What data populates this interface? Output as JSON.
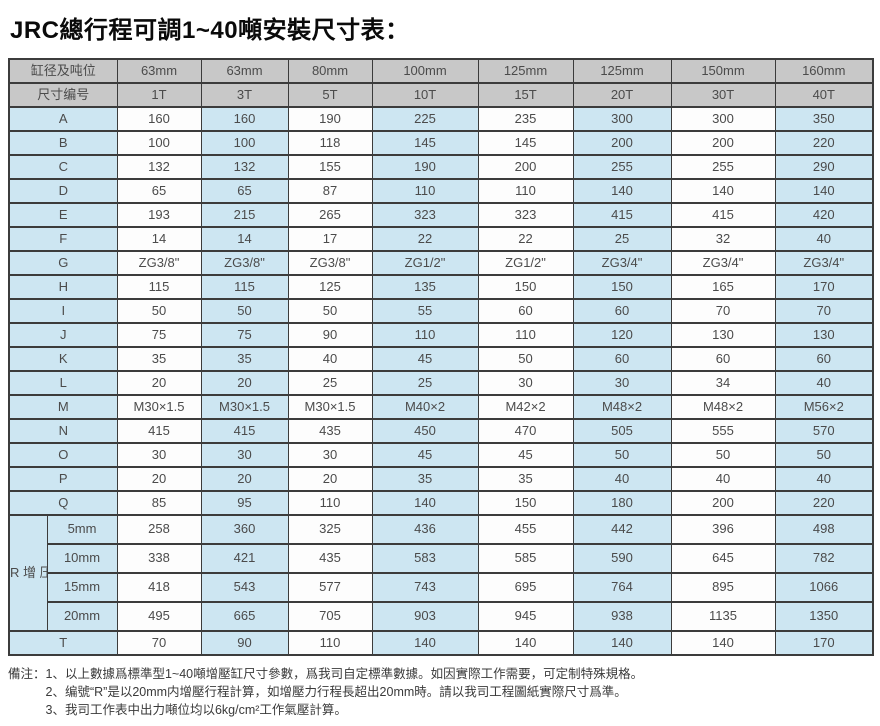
{
  "page_title": "JRC總行程可調1~40噸安裝尺寸表：",
  "table": {
    "bore_header": {
      "label": "缸径及吨位",
      "values": [
        "63mm",
        "63mm",
        "80mm",
        "100mm",
        "125mm",
        "125mm",
        "150mm",
        "160mm"
      ]
    },
    "size_code_header": {
      "label": "尺寸编号",
      "values": [
        "1T",
        "3T",
        "5T",
        "10T",
        "15T",
        "20T",
        "30T",
        "40T"
      ]
    },
    "dimension_rows": [
      {
        "label": "A",
        "values": [
          "160",
          "160",
          "190",
          "225",
          "235",
          "300",
          "300",
          "350"
        ]
      },
      {
        "label": "B",
        "values": [
          "100",
          "100",
          "118",
          "145",
          "145",
          "200",
          "200",
          "220"
        ]
      },
      {
        "label": "C",
        "values": [
          "132",
          "132",
          "155",
          "190",
          "200",
          "255",
          "255",
          "290"
        ]
      },
      {
        "label": "D",
        "values": [
          "65",
          "65",
          "87",
          "110",
          "110",
          "140",
          "140",
          "140"
        ]
      },
      {
        "label": "E",
        "values": [
          "193",
          "215",
          "265",
          "323",
          "323",
          "415",
          "415",
          "420"
        ]
      },
      {
        "label": "F",
        "values": [
          "14",
          "14",
          "17",
          "22",
          "22",
          "25",
          "32",
          "40"
        ]
      },
      {
        "label": "G",
        "values": [
          "ZG3/8\"",
          "ZG3/8\"",
          "ZG3/8\"",
          "ZG1/2\"",
          "ZG1/2\"",
          "ZG3/4\"",
          "ZG3/4\"",
          "ZG3/4\""
        ]
      },
      {
        "label": "H",
        "values": [
          "115",
          "115",
          "125",
          "135",
          "150",
          "150",
          "165",
          "170"
        ]
      },
      {
        "label": "I",
        "values": [
          "50",
          "50",
          "50",
          "55",
          "60",
          "60",
          "70",
          "70"
        ]
      },
      {
        "label": "J",
        "values": [
          "75",
          "75",
          "90",
          "110",
          "110",
          "120",
          "130",
          "130"
        ]
      },
      {
        "label": "K",
        "values": [
          "35",
          "35",
          "40",
          "45",
          "50",
          "60",
          "60",
          "60"
        ]
      },
      {
        "label": "L",
        "values": [
          "20",
          "20",
          "25",
          "25",
          "30",
          "30",
          "34",
          "40"
        ]
      },
      {
        "label": "M",
        "values": [
          "M30×1.5",
          "M30×1.5",
          "M30×1.5",
          "M40×2",
          "M42×2",
          "M48×2",
          "M48×2",
          "M56×2"
        ]
      },
      {
        "label": "N",
        "values": [
          "415",
          "415",
          "435",
          "450",
          "470",
          "505",
          "555",
          "570"
        ]
      },
      {
        "label": "O",
        "values": [
          "30",
          "30",
          "30",
          "45",
          "45",
          "50",
          "50",
          "50"
        ]
      },
      {
        "label": "P",
        "values": [
          "20",
          "20",
          "20",
          "35",
          "35",
          "40",
          "40",
          "40"
        ]
      },
      {
        "label": "Q",
        "values": [
          "85",
          "95",
          "110",
          "140",
          "150",
          "180",
          "200",
          "220"
        ]
      }
    ],
    "r_section": {
      "group_label": "R增压行程",
      "rows": [
        {
          "label": "5mm",
          "values": [
            "258",
            "360",
            "325",
            "436",
            "455",
            "442",
            "396",
            "498"
          ]
        },
        {
          "label": "10mm",
          "values": [
            "338",
            "421",
            "435",
            "583",
            "585",
            "590",
            "645",
            "782"
          ]
        },
        {
          "label": "15mm",
          "values": [
            "418",
            "543",
            "577",
            "743",
            "695",
            "764",
            "895",
            "1066"
          ]
        },
        {
          "label": "20mm",
          "values": [
            "495",
            "665",
            "705",
            "903",
            "945",
            "938",
            "1135",
            "1350"
          ]
        }
      ]
    },
    "t_row": {
      "label": "T",
      "values": [
        "70",
        "90",
        "110",
        "140",
        "140",
        "140",
        "140",
        "170"
      ]
    }
  },
  "notes": {
    "label": "備注：",
    "items": [
      "1、以上數據爲標準型1~40噸增壓缸尺寸參數，爲我司自定標準數據。如因實際工作需要，可定制特殊規格。",
      "2、编號“R”是以20mm内增壓行程計算，如增壓力行程長超出20mm時。請以我司工程圖紙實際尺寸爲準。",
      "3、我司工作表中出力噸位均以6kg/cm²工作氣壓計算。"
    ]
  },
  "colors": {
    "header_bg": "#c8c8c8",
    "blue_cell_bg": "#cde6f2",
    "white_cell_bg": "#fdfdfd",
    "border": "#3c3c3c",
    "cell_text": "#4b4b4b",
    "title_text": "#0a0a0a"
  }
}
